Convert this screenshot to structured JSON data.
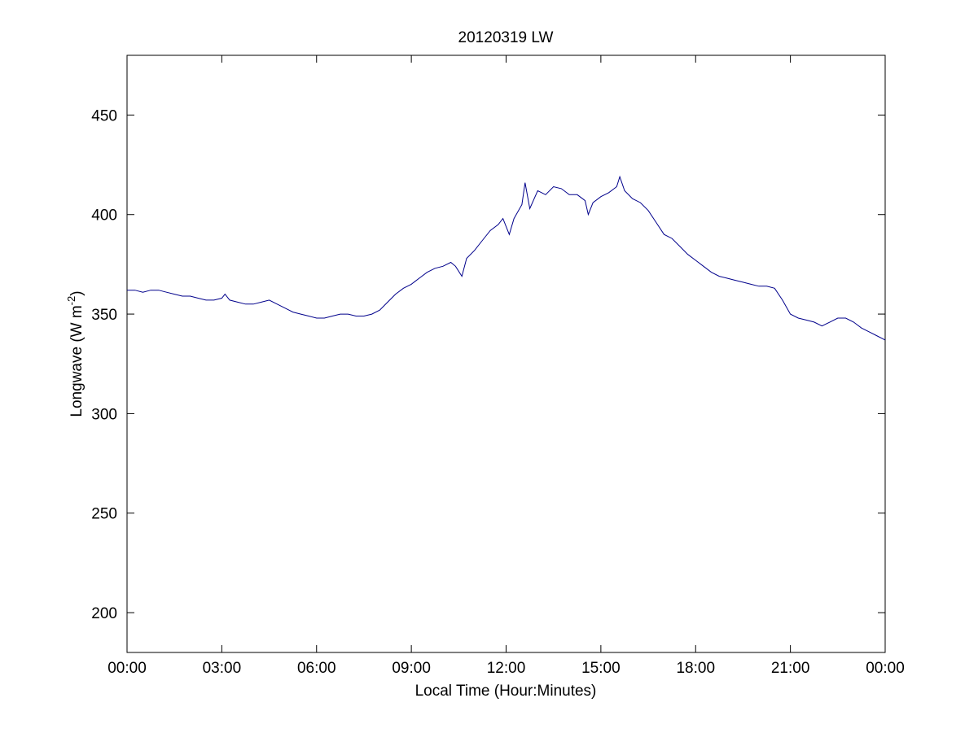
{
  "chart_data": {
    "type": "line",
    "title": "20120319 LW",
    "xlabel": "Local Time (Hour:Minutes)",
    "ylabel_main": "Longwave (W m",
    "ylabel_sup": "-2",
    "ylabel_close": ")",
    "xlim": [
      0,
      24
    ],
    "ylim": [
      180,
      480
    ],
    "x_ticks": [
      0,
      3,
      6,
      9,
      12,
      15,
      18,
      21,
      24
    ],
    "x_tick_labels": [
      "00:00",
      "03:00",
      "06:00",
      "09:00",
      "12:00",
      "15:00",
      "18:00",
      "21:00",
      "00:00"
    ],
    "y_ticks": [
      200,
      250,
      300,
      350,
      400,
      450
    ],
    "y_tick_labels": [
      "200",
      "250",
      "300",
      "350",
      "400",
      "450"
    ],
    "grid": false,
    "line_color": "#00008b",
    "series": [
      {
        "x": [
          0.0,
          0.25,
          0.5,
          0.75,
          1.0,
          1.25,
          1.5,
          1.75,
          2.0,
          2.25,
          2.5,
          2.75,
          3.0,
          3.1,
          3.25,
          3.5,
          3.75,
          4.0,
          4.25,
          4.5,
          4.75,
          5.0,
          5.25,
          5.5,
          5.75,
          6.0,
          6.25,
          6.5,
          6.75,
          7.0,
          7.25,
          7.5,
          7.75,
          8.0,
          8.25,
          8.5,
          8.75,
          9.0,
          9.25,
          9.5,
          9.75,
          10.0,
          10.25,
          10.4,
          10.6,
          10.75,
          11.0,
          11.25,
          11.5,
          11.75,
          11.9,
          12.1,
          12.25,
          12.5,
          12.6,
          12.75,
          13.0,
          13.25,
          13.5,
          13.75,
          14.0,
          14.25,
          14.5,
          14.6,
          14.75,
          15.0,
          15.25,
          15.5,
          15.6,
          15.75,
          16.0,
          16.25,
          16.5,
          16.75,
          17.0,
          17.25,
          17.5,
          17.75,
          18.0,
          18.25,
          18.5,
          18.75,
          19.0,
          19.25,
          19.5,
          19.75,
          20.0,
          20.25,
          20.5,
          20.75,
          21.0,
          21.25,
          21.5,
          21.75,
          22.0,
          22.25,
          22.5,
          22.75,
          23.0,
          23.25,
          23.5,
          23.75,
          24.0
        ],
        "y": [
          362,
          362,
          361,
          362,
          362,
          361,
          360,
          359,
          359,
          358,
          357,
          357,
          358,
          360,
          357,
          356,
          355,
          355,
          356,
          357,
          355,
          353,
          351,
          350,
          349,
          348,
          348,
          349,
          350,
          350,
          349,
          349,
          350,
          352,
          356,
          360,
          363,
          365,
          368,
          371,
          373,
          374,
          376,
          374,
          369,
          378,
          382,
          387,
          392,
          395,
          398,
          390,
          398,
          405,
          416,
          403,
          412,
          410,
          414,
          413,
          410,
          410,
          407,
          400,
          406,
          409,
          411,
          414,
          419,
          412,
          408,
          406,
          402,
          396,
          390,
          388,
          384,
          380,
          377,
          374,
          371,
          369,
          368,
          367,
          366,
          365,
          364,
          364,
          363,
          357,
          350,
          348,
          347,
          346,
          344,
          346,
          348,
          348,
          346,
          343,
          341,
          339,
          337
        ]
      }
    ]
  }
}
